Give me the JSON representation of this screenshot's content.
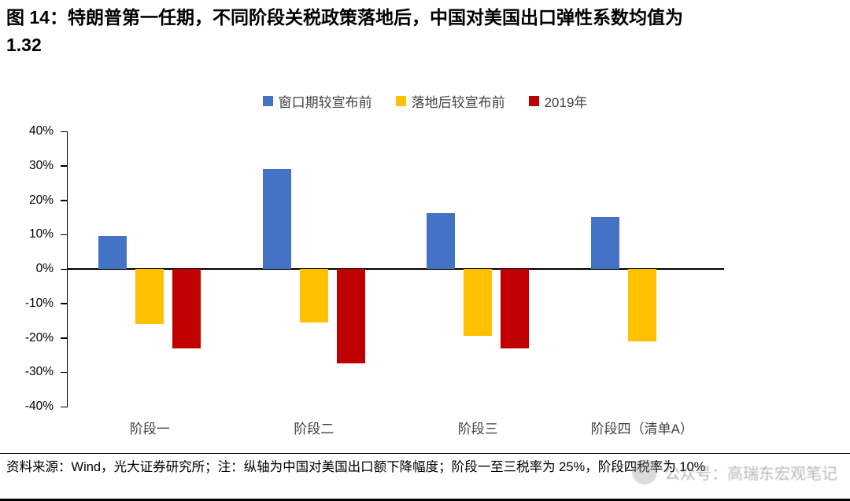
{
  "title": {
    "line1": "图 14：特朗普第一任期，不同阶段关税政策落地后，中国对美国出口弹性系数均值为",
    "line2": "1.32"
  },
  "chart_data": {
    "type": "bar",
    "categories": [
      "阶段一",
      "阶段二",
      "阶段三",
      "阶段四（清单A）"
    ],
    "series": [
      {
        "name": "窗口期较宣布前",
        "color": "#4472C4",
        "values": [
          9.7,
          29,
          16.2,
          15
        ]
      },
      {
        "name": "落地后较宣布前",
        "color": "#FFC000",
        "values": [
          -16,
          -15.5,
          -19.5,
          -21
        ]
      },
      {
        "name": "2019年",
        "color": "#C00000",
        "values": [
          -23,
          -27.5,
          -23,
          0
        ]
      }
    ],
    "title": "图 14：特朗普第一任期，不同阶段关税政策落地后，中国对美国出口弹性系数均值为 1.32",
    "xlabel": "",
    "ylabel": "",
    "ylim": [
      -40,
      40
    ],
    "ytick_step": 10,
    "ytick_labels": [
      "40%",
      "30%",
      "20%",
      "10%",
      "0%",
      "-10%",
      "-20%",
      "-30%",
      "-40%"
    ],
    "grid": false,
    "legend_position": "top"
  },
  "footer": {
    "source_note": "资料来源：Wind，光大证券研究所；注：纵轴为中国对美国出口额下降幅度；阶段一至三税率为 25%，阶段四税率为 10%"
  },
  "watermark": {
    "text": "公众号：高瑞东宏观笔记"
  }
}
